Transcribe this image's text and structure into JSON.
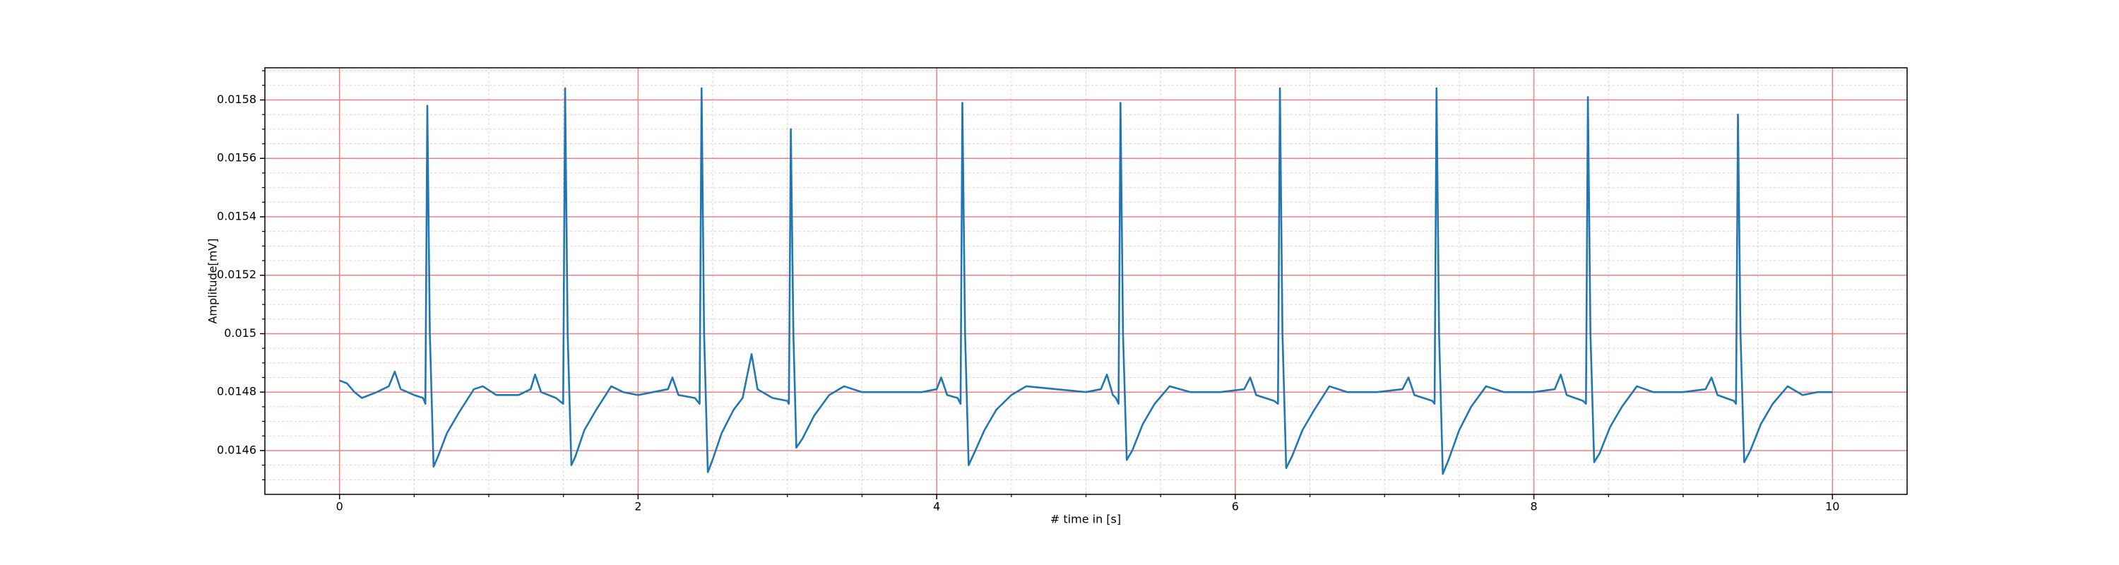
{
  "chart_data": {
    "type": "line",
    "xlabel": "# time in [s]",
    "ylabel": "Amplitude[mV]",
    "xlim": [
      -0.5,
      10.5
    ],
    "ylim": [
      0.01445,
      0.01591
    ],
    "xticks": [
      0,
      2,
      4,
      6,
      8,
      10
    ],
    "yticks": [
      0.0146,
      0.0148,
      0.015,
      0.0152,
      0.0154,
      0.0156,
      0.0158
    ],
    "xminorticks": [
      0.5,
      1,
      1.5,
      2.5,
      3,
      3.5,
      4.5,
      5,
      5.5,
      6.5,
      7,
      7.5,
      8.5,
      9,
      9.5
    ],
    "yminorticks": [
      0.0145,
      0.01455,
      0.01465,
      0.0147,
      0.01475,
      0.01485,
      0.0149,
      0.01495,
      0.01505,
      0.0151,
      0.01515,
      0.01525,
      0.0153,
      0.01535,
      0.01545,
      0.0155,
      0.01555,
      0.01565,
      0.0157,
      0.01575,
      0.01585,
      0.0159
    ],
    "grid": true,
    "major_grid_color": "#f08080",
    "minor_grid_color": "#ffc0cb",
    "x": [
      0,
      0.05,
      0.1,
      0.15,
      0.25,
      0.33,
      0.37,
      0.41,
      0.5,
      0.56,
      0.575,
      0.588,
      0.605,
      0.63,
      0.66,
      0.72,
      0.8,
      0.9,
      0.96,
      1.05,
      1.2,
      1.28,
      1.31,
      1.35,
      1.45,
      1.498,
      1.511,
      1.528,
      1.553,
      1.58,
      1.64,
      1.72,
      1.82,
      1.9,
      2.0,
      2.1,
      2.2,
      2.23,
      2.27,
      2.38,
      2.412,
      2.425,
      2.442,
      2.467,
      2.5,
      2.56,
      2.64,
      2.7,
      2.76,
      2.8,
      2.9,
      3.0,
      3.01,
      3.023,
      3.04,
      3.06,
      3.1,
      3.18,
      3.28,
      3.38,
      3.5,
      3.7,
      3.9,
      4.0,
      4.03,
      4.07,
      4.14,
      4.16,
      4.172,
      4.19,
      4.214,
      4.25,
      4.32,
      4.4,
      4.5,
      4.6,
      4.8,
      5.0,
      5.1,
      5.14,
      5.18,
      5.2,
      5.218,
      5.231,
      5.248,
      5.273,
      5.31,
      5.38,
      5.46,
      5.56,
      5.7,
      5.9,
      6.06,
      6.1,
      6.14,
      6.26,
      6.286,
      6.299,
      6.316,
      6.341,
      6.38,
      6.45,
      6.53,
      6.63,
      6.75,
      6.95,
      7.12,
      7.16,
      7.2,
      7.32,
      7.335,
      7.348,
      7.365,
      7.39,
      7.43,
      7.5,
      7.58,
      7.68,
      7.8,
      8.0,
      8.14,
      8.18,
      8.22,
      8.33,
      8.349,
      8.362,
      8.379,
      8.404,
      8.44,
      8.51,
      8.59,
      8.69,
      8.8,
      9.0,
      9.15,
      9.19,
      9.23,
      9.34,
      9.354,
      9.367,
      9.384,
      9.409,
      9.45,
      9.52,
      9.6,
      9.7,
      9.8,
      9.9,
      10.0
    ],
    "series": [
      {
        "color": "#1f77b4",
        "values": [
          0.01484,
          0.01483,
          0.0148,
          0.01478,
          0.0148,
          0.01482,
          0.01487,
          0.01481,
          0.01479,
          0.01478,
          0.01476,
          0.01578,
          0.015,
          0.014545,
          0.01458,
          0.01466,
          0.01473,
          0.01481,
          0.01482,
          0.01479,
          0.01479,
          0.01481,
          0.01486,
          0.0148,
          0.01478,
          0.01476,
          0.01584,
          0.015,
          0.01455,
          0.01458,
          0.01467,
          0.01474,
          0.01482,
          0.0148,
          0.01479,
          0.0148,
          0.01481,
          0.01485,
          0.01479,
          0.01478,
          0.01476,
          0.01584,
          0.015,
          0.014526,
          0.01457,
          0.01466,
          0.01474,
          0.01478,
          0.01493,
          0.01481,
          0.01478,
          0.01477,
          0.01476,
          0.0157,
          0.015,
          0.01461,
          0.01464,
          0.01472,
          0.01479,
          0.01482,
          0.0148,
          0.0148,
          0.0148,
          0.01481,
          0.01485,
          0.01479,
          0.01478,
          0.01476,
          0.01579,
          0.015,
          0.01455,
          0.01459,
          0.01467,
          0.01474,
          0.01479,
          0.01482,
          0.01481,
          0.0148,
          0.01481,
          0.01486,
          0.01479,
          0.01478,
          0.01476,
          0.01579,
          0.015,
          0.014568,
          0.0146,
          0.01469,
          0.01476,
          0.01482,
          0.0148,
          0.0148,
          0.01481,
          0.01485,
          0.01479,
          0.01477,
          0.01476,
          0.01584,
          0.015,
          0.01454,
          0.01458,
          0.01467,
          0.01474,
          0.01482,
          0.0148,
          0.0148,
          0.01481,
          0.01485,
          0.01479,
          0.01477,
          0.01476,
          0.01584,
          0.015,
          0.01452,
          0.01457,
          0.01467,
          0.01475,
          0.01482,
          0.0148,
          0.0148,
          0.01481,
          0.01486,
          0.01479,
          0.01477,
          0.01476,
          0.01581,
          0.015,
          0.01456,
          0.01459,
          0.01468,
          0.01475,
          0.01482,
          0.0148,
          0.0148,
          0.01481,
          0.01485,
          0.01479,
          0.01477,
          0.01476,
          0.01575,
          0.015,
          0.01456,
          0.0146,
          0.01469,
          0.01476,
          0.01482,
          0.01479,
          0.0148,
          0.0148
        ]
      }
    ]
  }
}
